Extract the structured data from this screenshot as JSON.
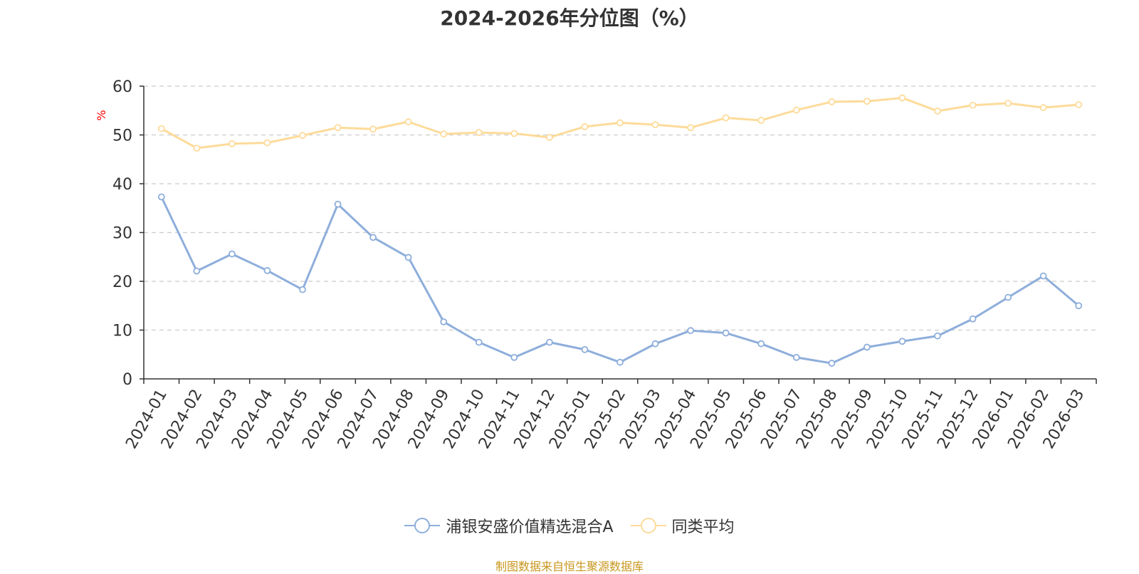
{
  "title": "2024-2026年分位图（%）",
  "source": "制图数据来自恒生聚源数据库",
  "chart_data": {
    "type": "line",
    "title": "2024-2026年分位图（%）",
    "ylabel": "%",
    "ylim": [
      0,
      60
    ],
    "yticks": [
      0,
      10,
      20,
      30,
      40,
      50,
      60
    ],
    "grid": true,
    "legend_position": "bottom",
    "categories": [
      "2024-01",
      "2024-02",
      "2024-03",
      "2024-04",
      "2024-05",
      "2024-06",
      "2024-07",
      "2024-08",
      "2024-09",
      "2024-10",
      "2024-11",
      "2024-12",
      "2025-01",
      "2025-02",
      "2025-03",
      "2025-04",
      "2025-05",
      "2025-06",
      "2025-07",
      "2025-08",
      "2025-09",
      "2025-10",
      "2025-11",
      "2025-12",
      "2026-01",
      "2026-02",
      "2026-03"
    ],
    "series": [
      {
        "name": "浦银安盛价值精选混合A",
        "color": "#8eaedb",
        "values": [
          37.3,
          22.1,
          25.6,
          22.2,
          18.3,
          35.8,
          29.0,
          24.9,
          11.7,
          7.5,
          4.4,
          7.5,
          6.0,
          3.4,
          7.2,
          9.9,
          9.4,
          7.2,
          4.4,
          3.2,
          6.5,
          7.7,
          8.8,
          12.3,
          16.7,
          21.1,
          15.0
        ]
      },
      {
        "name": "同类平均",
        "color": "#fddb9a",
        "values": [
          51.3,
          47.3,
          48.2,
          48.4,
          49.9,
          51.5,
          51.2,
          52.7,
          50.2,
          50.5,
          50.3,
          49.5,
          51.7,
          52.5,
          52.1,
          51.5,
          53.5,
          53.0,
          55.1,
          56.8,
          56.9,
          57.6,
          54.9,
          56.1,
          56.5,
          55.6,
          56.2
        ]
      }
    ]
  }
}
